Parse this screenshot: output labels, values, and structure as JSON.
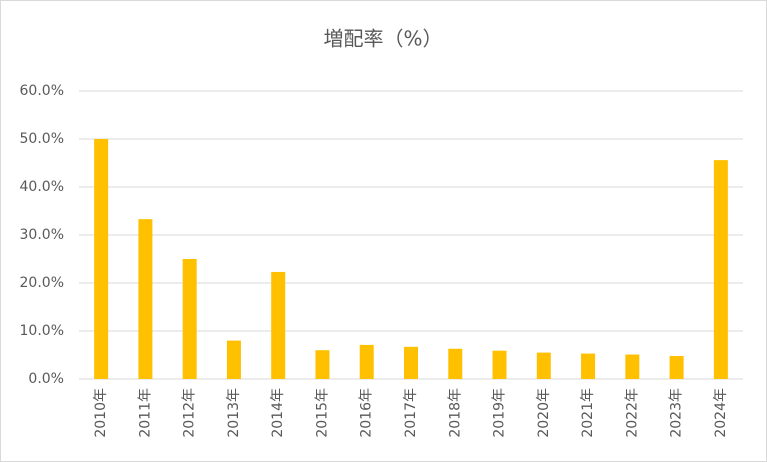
{
  "chart_data": {
    "type": "bar",
    "title": "増配率（%）",
    "categories": [
      "2010年",
      "2011年",
      "2012年",
      "2013年",
      "2014年",
      "2015年",
      "2016年",
      "2017年",
      "2018年",
      "2019年",
      "2020年",
      "2021年",
      "2022年",
      "2023年",
      "2024年"
    ],
    "values": [
      50.0,
      33.3,
      25.0,
      8.0,
      22.3,
      6.0,
      7.1,
      6.7,
      6.3,
      5.9,
      5.5,
      5.3,
      5.1,
      4.8,
      45.6
    ],
    "color": "#ffc000",
    "ylim": [
      0,
      60
    ],
    "yticks": [
      {
        "value": 0,
        "label": "0.0%"
      },
      {
        "value": 10,
        "label": "10.0%"
      },
      {
        "value": 20,
        "label": "20.0%"
      },
      {
        "value": 30,
        "label": "30.0%"
      },
      {
        "value": 40,
        "label": "40.0%"
      },
      {
        "value": 50,
        "label": "50.0%"
      },
      {
        "value": 60,
        "label": "60.0%"
      }
    ],
    "grid": true
  }
}
